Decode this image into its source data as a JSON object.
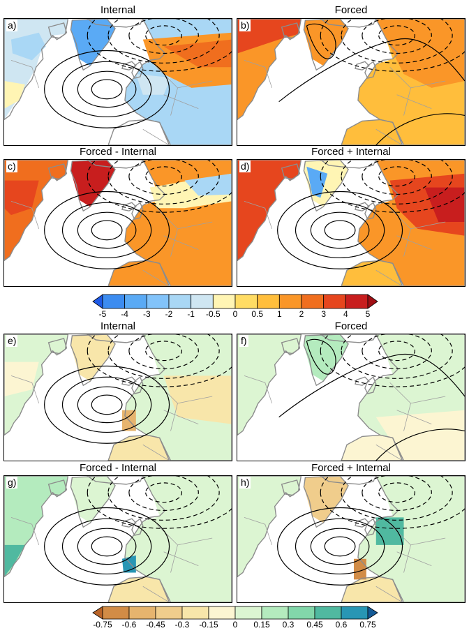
{
  "panels": [
    {
      "letter": "a)",
      "title": "Internal",
      "pattern": "internal_t",
      "set": "temp"
    },
    {
      "letter": "b)",
      "title": "Forced",
      "pattern": "forced_t",
      "set": "temp"
    },
    {
      "letter": "c)",
      "title": "Forced - Internal",
      "pattern": "fmi_t",
      "set": "temp"
    },
    {
      "letter": "d)",
      "title": "Forced + Internal",
      "pattern": "fpi_t",
      "set": "temp"
    },
    {
      "letter": "e)",
      "title": "Internal",
      "pattern": "internal_p",
      "set": "precip"
    },
    {
      "letter": "f)",
      "title": "Forced",
      "pattern": "forced_p",
      "set": "precip"
    },
    {
      "letter": "g)",
      "title": "Forced - Internal",
      "pattern": "fmi_p",
      "set": "precip"
    },
    {
      "letter": "h)",
      "title": "Forced + Internal",
      "pattern": "fpi_p",
      "set": "precip"
    }
  ],
  "colorbar_temp": {
    "ticks": [
      "-5",
      "-4",
      "-3",
      "-2",
      "-1",
      "-0.5",
      "0",
      "0.5",
      "1",
      "2",
      "3",
      "4",
      "5"
    ],
    "colors": [
      "#1e5ae6",
      "#3c8cf0",
      "#5aaaf5",
      "#82c3fa",
      "#a9d7f5",
      "#cfe6f2",
      "#fff5b4",
      "#ffdc64",
      "#ffbe3c",
      "#fa9628",
      "#f06e1e",
      "#e6461e",
      "#c81e1e",
      "#a00f14"
    ]
  },
  "colorbar_precip": {
    "ticks": [
      "-0.75",
      "-0.6",
      "-0.45",
      "-0.3",
      "-0.15",
      "0",
      "0.15",
      "0.3",
      "0.45",
      "0.6",
      "0.75"
    ],
    "colors": [
      "#b96428",
      "#d28c46",
      "#e6b46e",
      "#f0cd8c",
      "#f8e6aa",
      "#fcf5d2",
      "#dcf5d2",
      "#b4ebbe",
      "#82d7aa",
      "#50b9a0",
      "#2896b4",
      "#145a96"
    ]
  }
}
